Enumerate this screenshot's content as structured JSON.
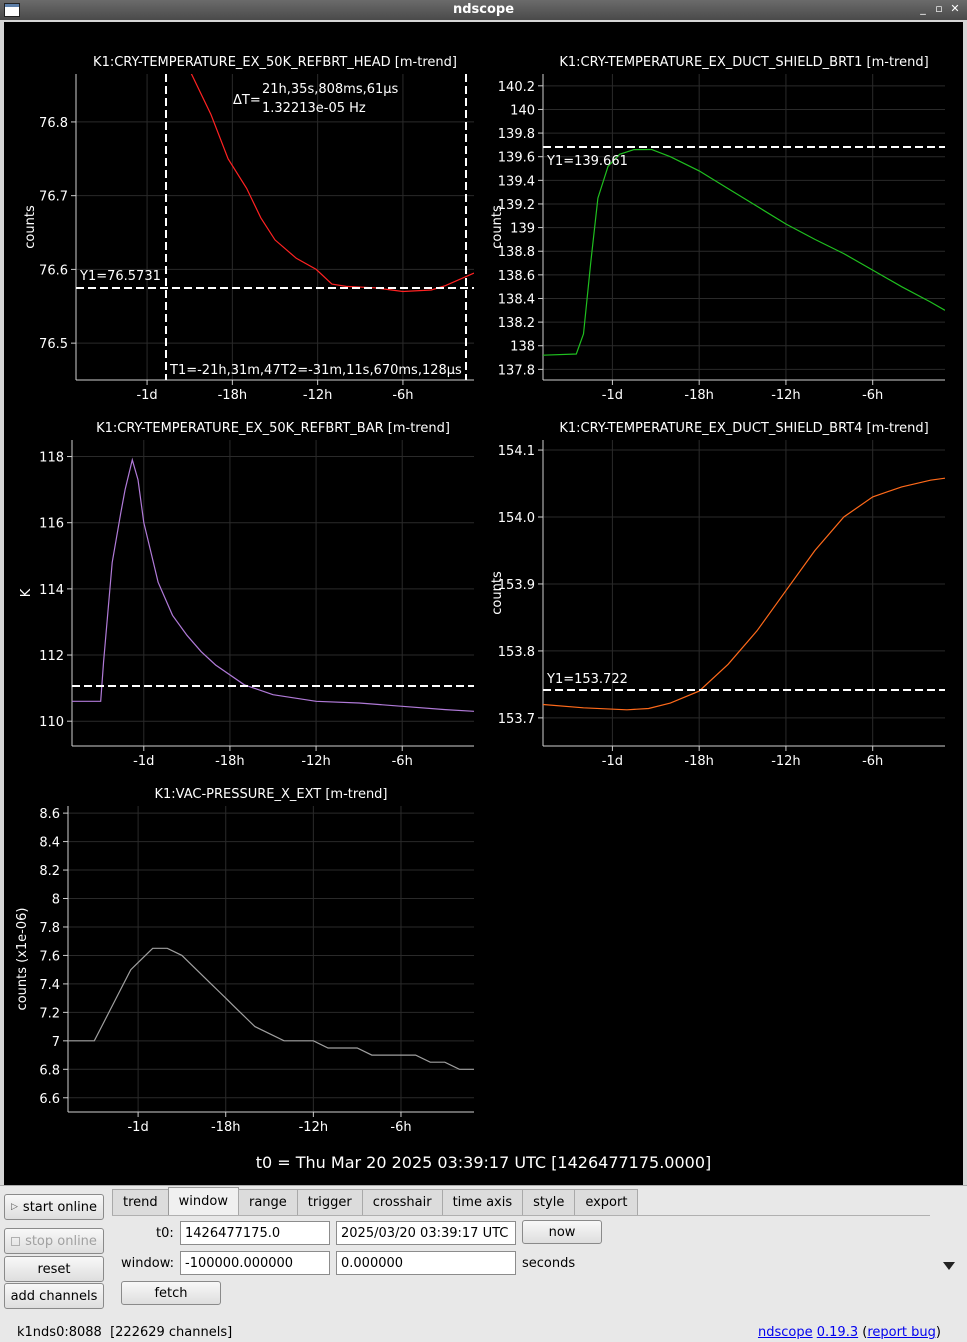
{
  "window": {
    "title": "ndscope"
  },
  "t0_label": "t0 = Thu Mar 20 2025 03:39:17 UTC [1426477175.0000]",
  "colors": {
    "background": "#000000",
    "ch1": "#ff2222",
    "ch2": "#1fbf1f",
    "ch3": "#b07ad8",
    "ch4": "#ff6a1a",
    "ch5": "#a0a0a0"
  },
  "chart_data": [
    {
      "type": "line",
      "title": "K1:CRY-TEMPERATURE_EX_50K_REFBRT_HEAD [m-trend]",
      "ylabel": "counts",
      "x_ticks": [
        "-1d",
        "-18h",
        "-12h",
        "-6h"
      ],
      "y_ticks": [
        "76.8",
        "76.7",
        "76.6",
        "76.5"
      ],
      "xlim_hours": [
        -29,
        -1
      ],
      "ylim": [
        76.45,
        76.865
      ],
      "series": [
        {
          "x_hours": [
            -21,
            -19.5,
            -18.3,
            -17,
            -16,
            -15,
            -13.5,
            -12.1,
            -11,
            -10,
            -8,
            -6,
            -4,
            -3,
            -1
          ],
          "values": [
            76.87,
            76.81,
            76.75,
            76.71,
            76.67,
            76.64,
            76.615,
            76.6,
            76.58,
            76.577,
            76.575,
            76.57,
            76.572,
            76.578,
            76.595
          ]
        }
      ],
      "cursors": {
        "y1_label": "Y1=76.5731",
        "delta_label": "ΔT=",
        "delta_time": "21h,35s,808ms,61μs",
        "delta_freq": "1.32213e-05 Hz",
        "t1_label": "T1=-21h,31m,47",
        "t2_label": "T2=-31m,11s,670ms,128μs"
      }
    },
    {
      "type": "line",
      "title": "K1:CRY-TEMPERATURE_EX_DUCT_SHIELD_BRT1 [m-trend]",
      "ylabel": "counts",
      "x_ticks": [
        "-1d",
        "-18h",
        "-12h",
        "-6h"
      ],
      "y_ticks": [
        "140.2",
        "140",
        "139.8",
        "139.6",
        "139.4",
        "139.2",
        "139",
        "138.8",
        "138.6",
        "138.4",
        "138.2",
        "138",
        "137.8"
      ],
      "xlim_hours": [
        -28.8,
        -1
      ],
      "ylim": [
        137.71,
        140.3
      ],
      "series": [
        {
          "x_hours": [
            -28.8,
            -26.5,
            -26,
            -25.5,
            -25,
            -24.3,
            -23.5,
            -22.5,
            -21.3,
            -20,
            -18,
            -16,
            -14,
            -12,
            -10,
            -8,
            -6,
            -4,
            -2,
            -1
          ],
          "values": [
            137.92,
            137.93,
            138.1,
            138.7,
            139.25,
            139.52,
            139.62,
            139.66,
            139.661,
            139.6,
            139.48,
            139.33,
            139.18,
            139.03,
            138.9,
            138.78,
            138.64,
            138.5,
            138.37,
            138.3
          ]
        }
      ],
      "cursors": {
        "y1_label": "Y1=139.661"
      }
    },
    {
      "type": "line",
      "title": "K1:CRY-TEMPERATURE_EX_50K_REFBRT_BAR [m-trend]",
      "ylabel": "K",
      "x_ticks": [
        "-1d",
        "-18h",
        "-12h",
        "-6h"
      ],
      "y_ticks": [
        "118",
        "116",
        "114",
        "112",
        "110"
      ],
      "xlim_hours": [
        -29,
        -1
      ],
      "ylim": [
        109.25,
        118.5
      ],
      "series": [
        {
          "x_hours": [
            -29,
            -27,
            -26.8,
            -26.2,
            -25.6,
            -25.3,
            -24.8,
            -24.4,
            -24,
            -23.5,
            -23,
            -22,
            -21,
            -20,
            -19,
            -17,
            -15,
            -12,
            -9,
            -6,
            -3,
            -1
          ],
          "values": [
            110.6,
            110.6,
            111.8,
            114.8,
            116.3,
            117.0,
            117.9,
            117.3,
            116.0,
            115.1,
            114.2,
            113.2,
            112.6,
            112.1,
            111.7,
            111.1,
            110.8,
            110.6,
            110.55,
            110.45,
            110.35,
            110.3
          ]
        }
      ],
      "cursors": {
        "y1_label": ""
      }
    },
    {
      "type": "line",
      "title": "K1:CRY-TEMPERATURE_EX_DUCT_SHIELD_BRT4 [m-trend]",
      "ylabel": "counts",
      "x_ticks": [
        "-1d",
        "-18h",
        "-12h",
        "-6h"
      ],
      "y_ticks": [
        "154.1",
        "154.0",
        "153.9",
        "153.8",
        "153.7"
      ],
      "xlim_hours": [
        -28.8,
        -1
      ],
      "ylim": [
        153.658,
        154.115
      ],
      "series": [
        {
          "x_hours": [
            -28.8,
            -26,
            -23,
            -21.5,
            -20,
            -18,
            -16,
            -14,
            -12,
            -10,
            -8,
            -6,
            -4,
            -2,
            -1
          ],
          "values": [
            153.72,
            153.715,
            153.712,
            153.714,
            153.722,
            153.74,
            153.78,
            153.83,
            153.89,
            153.95,
            154.0,
            154.03,
            154.045,
            154.055,
            154.058
          ]
        }
      ],
      "cursors": {
        "y1_label": "Y1=153.722"
      }
    },
    {
      "type": "line",
      "title": "K1:VAC-PRESSURE_X_EXT [m-trend]",
      "ylabel": "counts (x1e-06)",
      "x_ticks": [
        "-1d",
        "-18h",
        "-12h",
        "-6h"
      ],
      "y_ticks": [
        "8.6",
        "8.4",
        "8.2",
        "8",
        "7.8",
        "7.6",
        "7.4",
        "7.2",
        "7",
        "6.8",
        "6.6"
      ],
      "xlim_hours": [
        -28.8,
        -1
      ],
      "ylim": [
        6.5,
        8.65
      ],
      "series": [
        {
          "x_hours": [
            -28.8,
            -27,
            -26.5,
            -26,
            -25.5,
            -25,
            -24.5,
            -24,
            -23.5,
            -23,
            -22,
            -21,
            -20.5,
            -20,
            -19.5,
            -19,
            -18.5,
            -18,
            -17.5,
            -17,
            -16.5,
            -16,
            -15,
            -14,
            -13,
            -12,
            -11,
            -10,
            -9,
            -8,
            -7,
            -6,
            -5,
            -4,
            -3,
            -2,
            -1
          ],
          "values": [
            7.0,
            7.0,
            7.1,
            7.2,
            7.3,
            7.4,
            7.5,
            7.55,
            7.6,
            7.65,
            7.65,
            7.6,
            7.55,
            7.5,
            7.45,
            7.4,
            7.35,
            7.3,
            7.25,
            7.2,
            7.15,
            7.1,
            7.05,
            7.0,
            7.0,
            7.0,
            6.95,
            6.95,
            6.95,
            6.9,
            6.9,
            6.9,
            6.9,
            6.85,
            6.85,
            6.8,
            6.8
          ]
        }
      ],
      "cursors": {
        "y1_label": ""
      }
    }
  ],
  "sidebar": {
    "start_online": "start online",
    "stop_online": "stop online",
    "reset": "reset",
    "add_channels": "add channels"
  },
  "tabs": [
    "trend",
    "window",
    "range",
    "trigger",
    "crosshair",
    "time axis",
    "style",
    "export"
  ],
  "active_tab": "window",
  "form": {
    "t0_label": "t0:",
    "t0_gps": "1426477175.0",
    "t0_utc": "2025/03/20 03:39:17 UTC",
    "now_button": "now",
    "window_label": "window:",
    "window_start": "-100000.000000",
    "window_end": "0.000000",
    "seconds_label": "seconds",
    "fetch_button": "fetch"
  },
  "status": {
    "server": "k1nds0:8088",
    "channels": "[222629 channels]"
  },
  "version": {
    "app": "ndscope",
    "num": "0.19.3",
    "bug": "report bug"
  }
}
